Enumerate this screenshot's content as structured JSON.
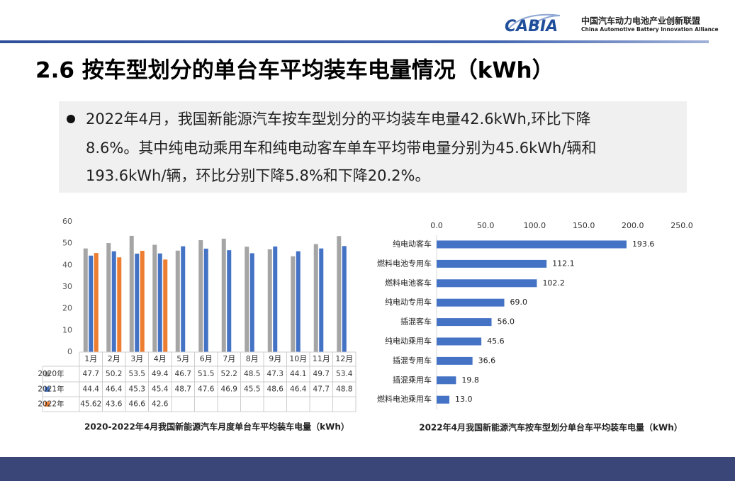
{
  "logo": {
    "mark": "CABIA",
    "name_cn": "中国汽车动力电池产业创新联盟",
    "name_en": "China Automotive Battery Innovation Alliance"
  },
  "title": "2.6 按车型划分的单台车平均装车电量情况（kWh）",
  "bullet_lines": [
    "2022年4月，我国新能源汽车按车型划分的平均装车电量42.6kWh,环比下降",
    "8.6%。其中纯电动乘用车和纯电动客车单车平均带电量分别为45.6kWh/辆和",
    "193.6kWh/辆，环比分别下降5.8%和下降20.2%。"
  ],
  "chart_data": [
    {
      "type": "bar",
      "caption": "2020-2022年4月我国新能源汽车月度单台车平均装车电量（kWh）",
      "categories": [
        "1月",
        "2月",
        "3月",
        "4月",
        "5月",
        "6月",
        "7月",
        "8月",
        "9月",
        "10月",
        "11月",
        "12月"
      ],
      "series": [
        {
          "name": "2020年",
          "color": "#a5a5a5",
          "values": [
            47.7,
            50.2,
            53.5,
            49.4,
            46.7,
            51.5,
            52.2,
            48.5,
            47.3,
            44.1,
            49.7,
            53.4
          ]
        },
        {
          "name": "2021年",
          "color": "#4472c4",
          "values": [
            44.4,
            46.4,
            45.3,
            45.4,
            48.7,
            47.6,
            46.9,
            45.5,
            48.6,
            46.4,
            47.7,
            48.8
          ]
        },
        {
          "name": "2022年",
          "color": "#ed7d31",
          "values": [
            45.62,
            43.6,
            46.6,
            42.6,
            null,
            null,
            null,
            null,
            null,
            null,
            null,
            null
          ]
        }
      ],
      "ylim": [
        0,
        60
      ],
      "yticks": [
        0,
        10,
        20,
        30,
        40,
        50,
        60
      ],
      "grid": false,
      "data_table": true
    },
    {
      "type": "barh",
      "caption": "2022年4月我国新能源汽车按车型划分单台车平均装车电量（kWh）",
      "categories": [
        "纯电动客车",
        "燃料电池专用车",
        "燃料电池客车",
        "纯电动专用车",
        "插混客车",
        "纯电动乘用车",
        "插混专用车",
        "插混乘用车",
        "燃料电池乘用车"
      ],
      "values": [
        193.6,
        112.1,
        102.2,
        69.0,
        56.0,
        45.6,
        36.6,
        19.8,
        13.0
      ],
      "value_labels": [
        "193.6",
        "112.1",
        "102.2",
        "69.0",
        "56.0",
        "45.6",
        "36.6",
        "19.8",
        "13.0"
      ],
      "color": "#4472c4",
      "xlim": [
        0,
        250
      ],
      "xticks": [
        {
          "value": 0,
          "label": "0.0"
        },
        {
          "value": 50,
          "label": "50.0"
        },
        {
          "value": 100,
          "label": "100.0"
        },
        {
          "value": 150,
          "label": "150.0"
        },
        {
          "value": 200,
          "label": "200.0"
        },
        {
          "value": 250,
          "label": "250.0"
        }
      ],
      "xaxis_position": "top",
      "grid": false
    }
  ]
}
